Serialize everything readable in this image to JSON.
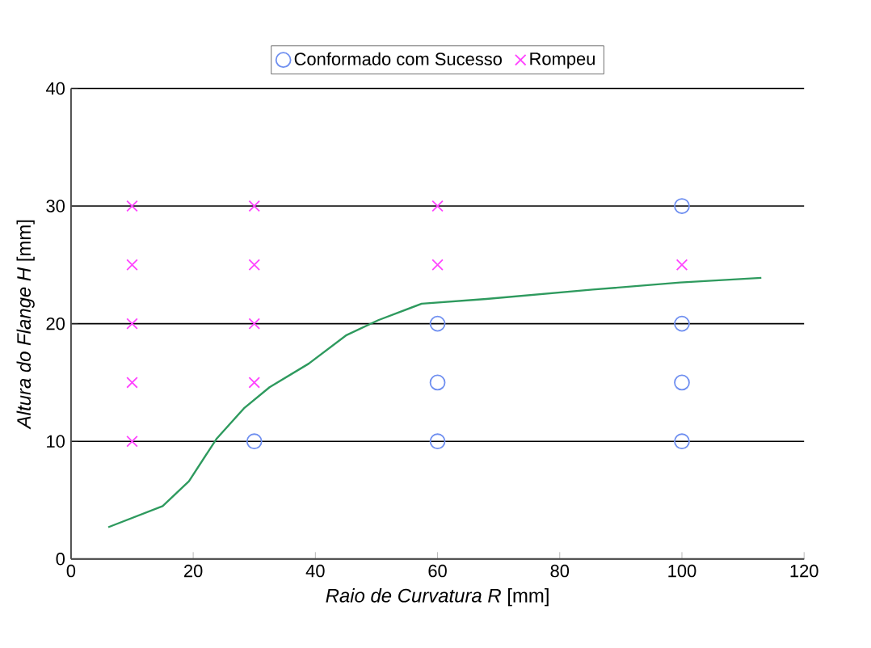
{
  "chart_data": {
    "type": "scatter",
    "xlabel": "*Raio de Curvatura R* [mm]",
    "ylabel": "*Altura do Flange H* [mm]",
    "xlim": [
      0,
      120
    ],
    "xticks": [
      0,
      20,
      40,
      60,
      80,
      100,
      120
    ],
    "ylim": [
      0,
      40
    ],
    "yticks": [
      0,
      10,
      20,
      30,
      40
    ],
    "grid": "y",
    "legend": "top",
    "series": [
      {
        "name": "Conformado com Sucesso",
        "color": "#6f8ff0",
        "marker": "circle",
        "x": [
          30,
          60,
          60,
          60,
          100,
          100,
          100,
          100
        ],
        "values": [
          10,
          10,
          15,
          20,
          10,
          15,
          20,
          30
        ]
      },
      {
        "name": "Rompeu",
        "color": "#ff44ff",
        "marker": "cross",
        "x": [
          10,
          10,
          10,
          10,
          10,
          30,
          30,
          30,
          30,
          60,
          60,
          100
        ],
        "values": [
          10,
          15,
          20,
          25,
          30,
          15,
          20,
          25,
          30,
          25,
          30,
          25
        ]
      },
      {
        "type": "line",
        "color": "#2e9a5e",
        "marker": "none",
        "x": [
          6.1,
          15,
          19.3,
          23.8,
          28.3,
          32.5,
          38.9,
          45,
          50.3,
          57.4,
          68,
          85.4,
          99.7,
          113
        ],
        "values": [
          2.7,
          4.5,
          6.6,
          10.2,
          12.8,
          14.6,
          16.6,
          19,
          20.3,
          21.7,
          22.1,
          22.9,
          23.5,
          23.9
        ]
      }
    ]
  }
}
